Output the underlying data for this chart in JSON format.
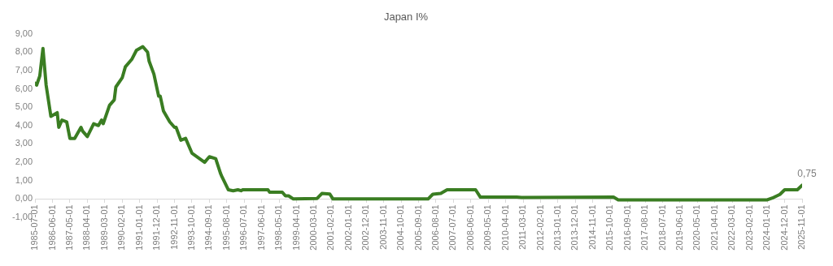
{
  "chart_data": {
    "type": "line",
    "title": "Japan I%",
    "x": [
      "1985-07",
      "1985-08",
      "1985-10",
      "1985-12",
      "1986-02",
      "1986-05",
      "1986-09",
      "1986-10",
      "1986-12",
      "1987-03",
      "1987-05",
      "1987-08",
      "1987-12",
      "1988-01",
      "1988-04",
      "1988-08",
      "1988-11",
      "1989-01",
      "1989-02",
      "1989-06",
      "1989-09",
      "1989-10",
      "1990-02",
      "1990-04",
      "1990-08",
      "1990-11",
      "1991-03",
      "1991-06",
      "1991-07",
      "1991-10",
      "1992-01",
      "1992-02",
      "1992-04",
      "1992-08",
      "1992-11",
      "1992-12",
      "1993-03",
      "1993-06",
      "1993-10",
      "1994-06",
      "1994-09",
      "1995-01",
      "1995-04",
      "1995-05",
      "1995-09",
      "1995-12",
      "1996-03",
      "1996-05",
      "1996-06",
      "1997-10",
      "1997-11",
      "1998-07",
      "1998-09",
      "1998-11",
      "1999-02",
      "2000-05",
      "2000-08",
      "2001-01",
      "2001-03",
      "2006-03",
      "2006-06",
      "2006-11",
      "2007-03",
      "2008-09",
      "2008-12",
      "2010-11",
      "2011-02",
      "2015-12",
      "2016-03",
      "2024-01",
      "2024-05",
      "2024-09",
      "2024-12",
      "2025-08",
      "2025-11"
    ],
    "series": [
      {
        "color": "#3a7d22",
        "values": [
          6.3,
          6.2,
          6.7,
          8.2,
          6.2,
          4.5,
          4.7,
          3.9,
          4.3,
          4.2,
          3.3,
          3.3,
          3.9,
          3.7,
          3.4,
          4.1,
          4.0,
          4.3,
          4.1,
          5.1,
          5.4,
          6.1,
          6.6,
          7.2,
          7.6,
          8.1,
          8.3,
          8.0,
          7.5,
          6.8,
          5.6,
          5.6,
          4.8,
          4.2,
          3.9,
          3.9,
          3.2,
          3.3,
          2.5,
          2.0,
          2.3,
          2.2,
          1.4,
          1.2,
          0.5,
          0.45,
          0.5,
          0.45,
          0.5,
          0.5,
          0.37,
          0.37,
          0.17,
          0.17,
          0.0,
          0.03,
          0.3,
          0.27,
          0.0,
          0.0,
          0.26,
          0.3,
          0.5,
          0.5,
          0.1,
          0.1,
          0.08,
          0.1,
          -0.05,
          -0.05,
          0.08,
          0.25,
          0.5,
          0.5,
          0.75
        ]
      }
    ],
    "xlim": [
      "1985-07-01",
      "2025-11-01"
    ],
    "xticks": [
      "1985-07-01",
      "1986-06-01",
      "1987-05-01",
      "1988-04-01",
      "1989-03-01",
      "1990-02-01",
      "1991-01-01",
      "1991-12-01",
      "1992-11-01",
      "1993-10-01",
      "1994-09-01",
      "1995-08-01",
      "1996-07-01",
      "1997-06-01",
      "1998-05-01",
      "1999-04-01",
      "2000-03-01",
      "2001-02-01",
      "2002-01-01",
      "2002-12-01",
      "2003-11-01",
      "2004-10-01",
      "2005-09-01",
      "2006-08-01",
      "2007-07-01",
      "2008-06-01",
      "2009-05-01",
      "2010-04-01",
      "2011-03-01",
      "2012-02-01",
      "2013-01-01",
      "2013-12-01",
      "2014-11-01",
      "2015-10-01",
      "2016-09-01",
      "2017-08-01",
      "2018-07-01",
      "2019-06-01",
      "2020-05-01",
      "2021-04-01",
      "2022-03-01",
      "2023-02-01",
      "2024-01-01",
      "2024-12-01",
      "2025-11-01"
    ],
    "ylim": [
      -1,
      9
    ],
    "yticks": [
      {
        "value": -1,
        "label": "-1,00"
      },
      {
        "value": 0,
        "label": "0,00"
      },
      {
        "value": 1,
        "label": "1,00"
      },
      {
        "value": 2,
        "label": "2,00"
      },
      {
        "value": 3,
        "label": "3,00"
      },
      {
        "value": 4,
        "label": "4,00"
      },
      {
        "value": 5,
        "label": "5,00"
      },
      {
        "value": 6,
        "label": "6,00"
      },
      {
        "value": 7,
        "label": "7,00"
      },
      {
        "value": 8,
        "label": "8,00"
      },
      {
        "value": 9,
        "label": "9,00"
      }
    ],
    "annotations": [
      {
        "text": "0,75",
        "x": "2025-11",
        "y": 0.75
      }
    ],
    "grid": false,
    "legend": false,
    "marker": "none",
    "line_style": "solid"
  }
}
